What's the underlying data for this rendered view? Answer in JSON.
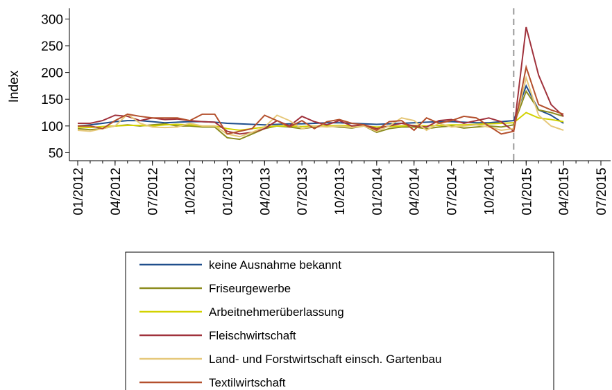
{
  "chart_data": {
    "type": "line",
    "y_label": "Index",
    "x": [
      "01/2012",
      "02/2012",
      "03/2012",
      "04/2012",
      "05/2012",
      "06/2012",
      "07/2012",
      "08/2012",
      "09/2012",
      "10/2012",
      "11/2012",
      "12/2012",
      "01/2013",
      "02/2013",
      "03/2013",
      "04/2013",
      "05/2013",
      "06/2013",
      "07/2013",
      "08/2013",
      "09/2013",
      "10/2013",
      "11/2013",
      "12/2013",
      "01/2014",
      "02/2014",
      "03/2014",
      "04/2014",
      "05/2014",
      "06/2014",
      "07/2014",
      "08/2014",
      "09/2014",
      "10/2014",
      "11/2014",
      "12/2014",
      "01/2015",
      "02/2015",
      "03/2015",
      "04/2015"
    ],
    "xlim": [
      "01/2012",
      "07/2015"
    ],
    "xticks": [
      "01/2012",
      "04/2012",
      "07/2012",
      "10/2012",
      "01/2013",
      "04/2013",
      "07/2013",
      "10/2013",
      "01/2014",
      "04/2014",
      "07/2014",
      "10/2014",
      "01/2015",
      "04/2015",
      "07/2015"
    ],
    "ylim": [
      35,
      320
    ],
    "yticks": [
      50,
      100,
      150,
      200,
      250,
      300
    ],
    "vline": "12/2014",
    "series": [
      {
        "name": "keine Ausnahme bekannt",
        "color": "#1f4e8c",
        "values": [
          100,
          102,
          105,
          108,
          110,
          110,
          108,
          106,
          107,
          108,
          108,
          107,
          105,
          104,
          103,
          102,
          103,
          104,
          104,
          105,
          106,
          106,
          105,
          104,
          103,
          104,
          105,
          106,
          107,
          108,
          108,
          107,
          106,
          106,
          108,
          110,
          175,
          130,
          120,
          105
        ]
      },
      {
        "name": "Friseurgewerbe",
        "color": "#8c8c1e",
        "values": [
          95,
          93,
          95,
          100,
          102,
          100,
          102,
          104,
          100,
          100,
          98,
          98,
          78,
          75,
          85,
          95,
          100,
          98,
          95,
          98,
          100,
          98,
          96,
          100,
          88,
          95,
          98,
          98,
          95,
          98,
          100,
          96,
          98,
          100,
          98,
          102,
          165,
          130,
          125,
          118
        ]
      },
      {
        "name": "Arbeitnehmerüberlassung",
        "color": "#d2d200",
        "values": [
          98,
          97,
          99,
          100,
          101,
          101,
          100,
          102,
          103,
          102,
          100,
          100,
          95,
          92,
          95,
          98,
          100,
          100,
          99,
          100,
          100,
          101,
          100,
          100,
          98,
          99,
          100,
          101,
          100,
          101,
          102,
          102,
          103,
          104,
          105,
          106,
          125,
          115,
          112,
          108
        ]
      },
      {
        "name": "Fleischwirtschaft",
        "color": "#a0323c",
        "values": [
          105,
          105,
          110,
          120,
          118,
          110,
          115,
          112,
          113,
          110,
          108,
          107,
          90,
          85,
          88,
          95,
          110,
          100,
          118,
          108,
          102,
          110,
          100,
          102,
          95,
          100,
          105,
          100,
          98,
          110,
          112,
          105,
          110,
          115,
          108,
          90,
          285,
          195,
          140,
          118
        ]
      },
      {
        "name": "Land- und Forstwirtschaft einsch. Gartenbau",
        "color": "#e6c87a",
        "values": [
          92,
          90,
          95,
          100,
          122,
          105,
          98,
          97,
          98,
          105,
          100,
          100,
          85,
          80,
          88,
          98,
          120,
          110,
          95,
          100,
          98,
          100,
          97,
          100,
          90,
          100,
          115,
          110,
          92,
          105,
          98,
          100,
          102,
          98,
          92,
          95,
          190,
          120,
          100,
          92
        ]
      },
      {
        "name": "Textilwirtschaft",
        "color": "#b4502d",
        "values": [
          100,
          100,
          95,
          110,
          122,
          118,
          115,
          115,
          115,
          110,
          122,
          122,
          85,
          90,
          95,
          120,
          110,
          98,
          110,
          95,
          108,
          112,
          105,
          102,
          92,
          108,
          110,
          92,
          115,
          105,
          110,
          118,
          115,
          100,
          85,
          90,
          210,
          140,
          130,
          122
        ]
      }
    ]
  }
}
